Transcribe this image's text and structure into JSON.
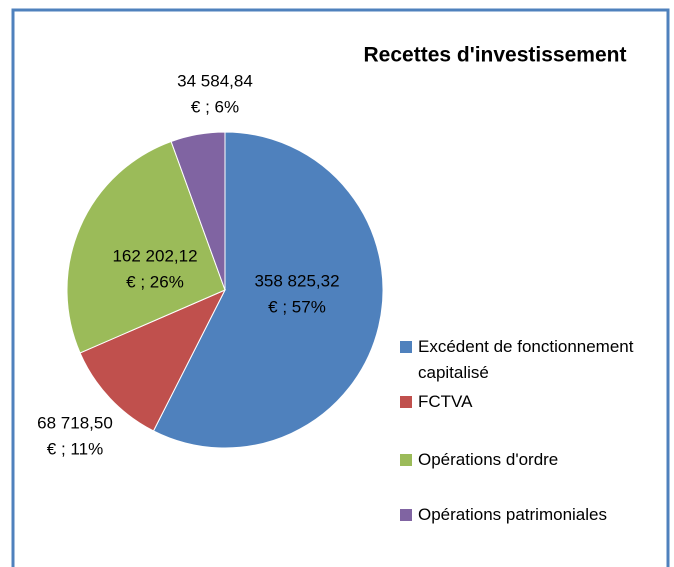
{
  "chart_data": {
    "type": "pie",
    "title": "Recettes d'investissement",
    "categories": [
      "Excédent de fonctionnement capitalisé",
      "FCTVA",
      "Opérations d'ordre",
      "Opérations patrimoniales"
    ],
    "values": [
      358825.32,
      68718.5,
      162202.12,
      34584.84
    ],
    "value_labels": [
      [
        "358 825,32",
        "€ ; 57%"
      ],
      [
        "68 718,50",
        "€ ; 11%"
      ],
      [
        "162 202,12",
        "€ ; 26%"
      ],
      [
        "34 584,84",
        "€ ; 6%"
      ]
    ],
    "colors": [
      "#4f81bd",
      "#c0504d",
      "#9bbb59",
      "#8064a2"
    ],
    "legend": "right"
  }
}
